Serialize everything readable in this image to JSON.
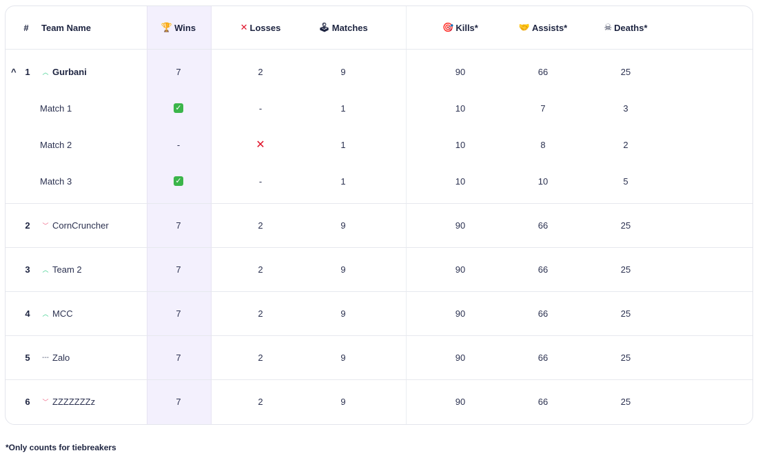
{
  "header": {
    "rank": "#",
    "team": "Team Name",
    "wins": "Wins",
    "losses": "Losses",
    "matches": "Matches",
    "kills": "Kills*",
    "assists": "Assists*",
    "deaths": "Deaths*",
    "icons": {
      "wins": "trophy-icon",
      "losses": "cross-icon",
      "matches": "joystick-icon",
      "kills": "target-icon",
      "assists": "handshake-icon",
      "deaths": "skull-icon"
    }
  },
  "expanded_team": {
    "rank": "1",
    "name": "Gurbani",
    "trend": "up",
    "wins": "7",
    "losses": "2",
    "matches": "9",
    "kills": "90",
    "assists": "66",
    "deaths": "25",
    "matches_detail": [
      {
        "label": "Match 1",
        "result": "win",
        "wins": "",
        "losses": "-",
        "matches": "1",
        "kills": "10",
        "assists": "7",
        "deaths": "3"
      },
      {
        "label": "Match 2",
        "result": "loss",
        "wins": "-",
        "losses": "",
        "matches": "1",
        "kills": "10",
        "assists": "8",
        "deaths": "2"
      },
      {
        "label": "Match 3",
        "result": "win",
        "wins": "",
        "losses": "-",
        "matches": "1",
        "kills": "10",
        "assists": "10",
        "deaths": "5"
      }
    ]
  },
  "teams": [
    {
      "rank": "2",
      "name": "CornCruncher",
      "trend": "down",
      "wins": "7",
      "losses": "2",
      "matches": "9",
      "kills": "90",
      "assists": "66",
      "deaths": "25"
    },
    {
      "rank": "3",
      "name": "Team 2",
      "trend": "up",
      "wins": "7",
      "losses": "2",
      "matches": "9",
      "kills": "90",
      "assists": "66",
      "deaths": "25"
    },
    {
      "rank": "4",
      "name": "MCC",
      "trend": "up",
      "wins": "7",
      "losses": "2",
      "matches": "9",
      "kills": "90",
      "assists": "66",
      "deaths": "25"
    },
    {
      "rank": "5",
      "name": "Zalo",
      "trend": "flat",
      "wins": "7",
      "losses": "2",
      "matches": "9",
      "kills": "90",
      "assists": "66",
      "deaths": "25"
    },
    {
      "rank": "6",
      "name": "ZZZZZZZz",
      "trend": "down",
      "wins": "7",
      "losses": "2",
      "matches": "9",
      "kills": "90",
      "assists": "66",
      "deaths": "25"
    }
  ],
  "footnote": "*Only counts for tiebreakers",
  "colors": {
    "wins_band": "#f3f0fd",
    "trend_up": "#3ecf8e",
    "trend_down": "#f06a8a",
    "win_check": "#3bb54a",
    "loss_cross": "#e0142b"
  }
}
